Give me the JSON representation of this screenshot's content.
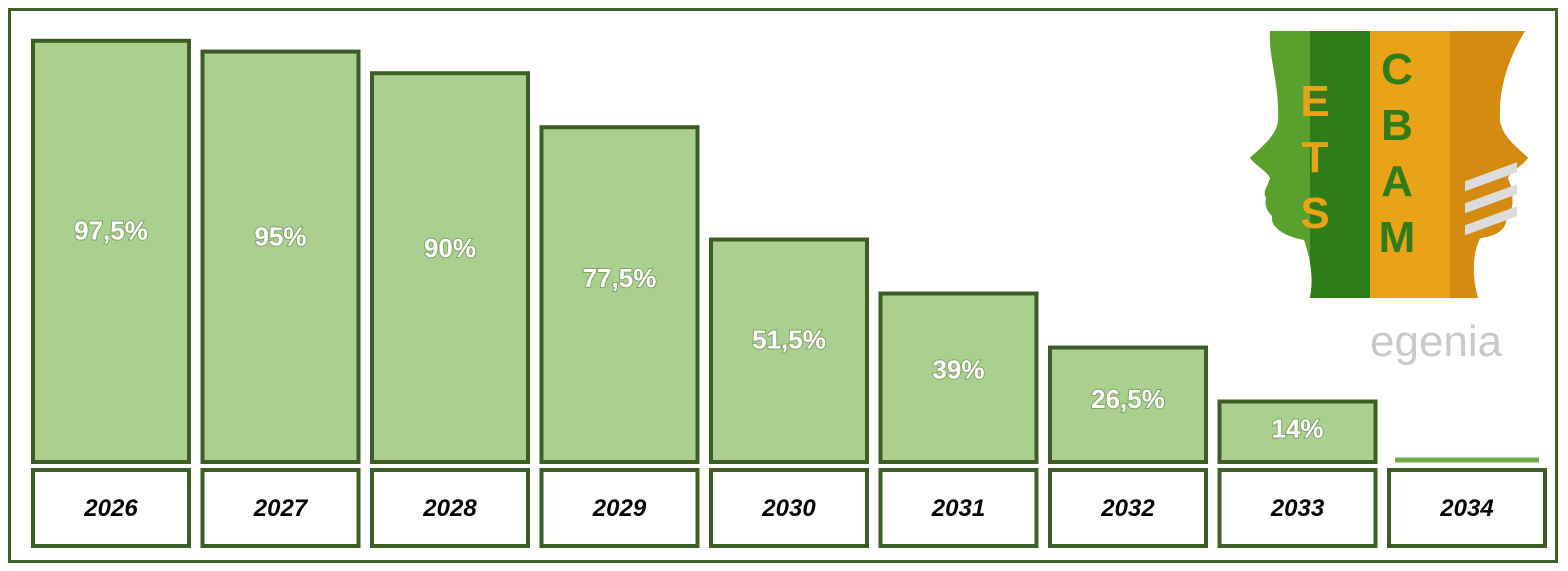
{
  "chart_data": {
    "type": "bar",
    "categories": [
      "2026",
      "2027",
      "2028",
      "2029",
      "2030",
      "2031",
      "2032",
      "2033",
      "2034"
    ],
    "values": [
      97.5,
      95,
      90,
      77.5,
      51.5,
      39,
      26.5,
      14,
      0
    ],
    "data_labels": [
      "97,5%",
      "95%",
      "90%",
      "77,5%",
      "51,5%",
      "39%",
      "26,5%",
      "14%",
      ""
    ],
    "title": "",
    "xlabel": "",
    "ylabel": "",
    "ylim": [
      0,
      100
    ],
    "grid": false,
    "legend": "none",
    "colors": {
      "bar_fill": "#a9d08e",
      "bar_border": "#3e5d24",
      "zero_bar": "#70ad47",
      "frame": "#3f5f28"
    }
  },
  "logo": {
    "left_letters": [
      "E",
      "T",
      "S"
    ],
    "right_letters": [
      "C",
      "B",
      "A",
      "M"
    ],
    "left_color": "#2e7d1a",
    "right_color": "#e8a317",
    "brand": "egenia"
  }
}
